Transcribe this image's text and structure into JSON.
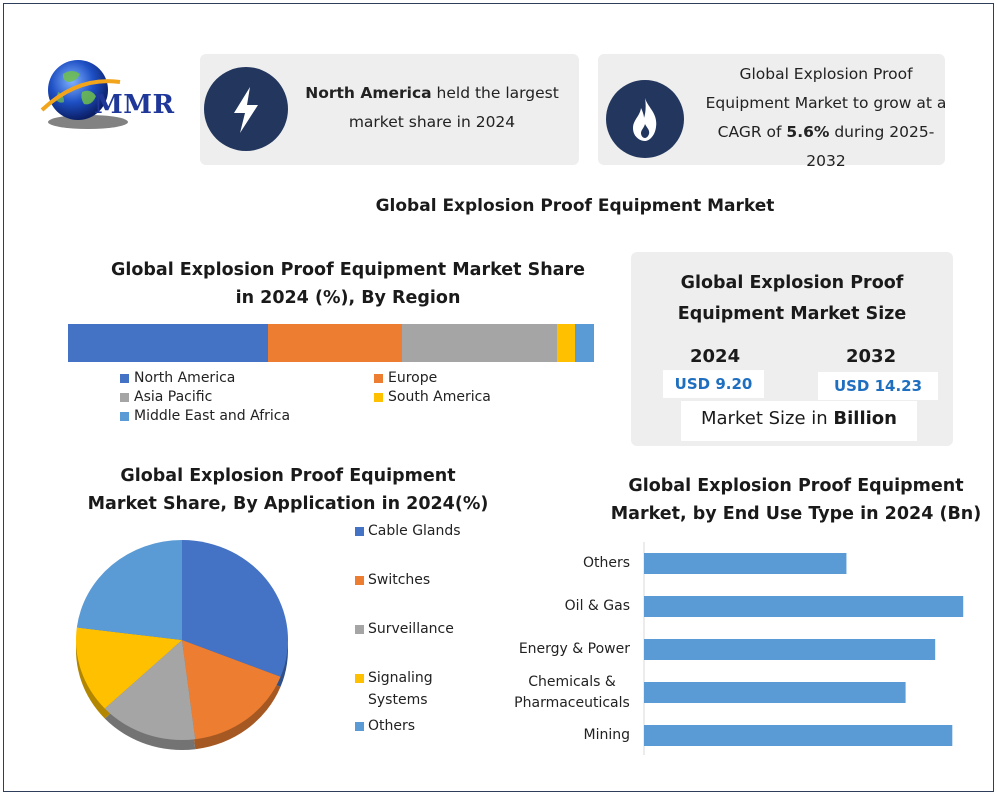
{
  "logo": {
    "text": "MMR"
  },
  "cards": [
    {
      "icon": "lightning-bolt-icon",
      "text_bold": "North America",
      "text_rest": " held the largest market share in 2024"
    },
    {
      "icon": "flame-icon",
      "text_before": "Global Explosion Proof Equipment Market to grow at a CAGR of ",
      "text_bold": "5.6%",
      "text_after": " during 2025-2032"
    }
  ],
  "main_title": "Global Explosion Proof Equipment Market",
  "market_size": {
    "title_line1": "Global Explosion Proof",
    "title_line2": "Equipment Market Size",
    "year1": "2024",
    "value1": "USD 9.20",
    "year2": "2032",
    "value2": "USD 14.23",
    "unit_prefix": "Market Size in ",
    "unit_bold": "Billion"
  },
  "colors": {
    "blue": "#4472c4",
    "orange": "#ed7d31",
    "gray": "#a5a5a5",
    "yellow": "#ffc000",
    "light_blue": "#5b9bd5",
    "navy": "#22365e",
    "bar": "#5b9bd5"
  },
  "chart_data": [
    {
      "type": "bar",
      "orientation": "stacked-horizontal",
      "title_line1": "Global Explosion Proof Equipment Market Share",
      "title_line2": "in 2024 (%), By Region",
      "series": [
        {
          "name": "North America",
          "value": 38,
          "color": "#4472c4"
        },
        {
          "name": "Europe",
          "value": 25.5,
          "color": "#ed7d31"
        },
        {
          "name": "Asia Pacific",
          "value": 29.5,
          "color": "#a5a5a5"
        },
        {
          "name": "South America",
          "value": 3.3,
          "color": "#ffc000"
        },
        {
          "name": "Middle East and Africa",
          "value": 3.7,
          "color": "#5b9bd5"
        }
      ]
    },
    {
      "type": "pie",
      "title_line1": "Global Explosion Proof Equipment",
      "title_line2": "Market Share, By Application in 2024(%)",
      "slices": [
        {
          "name": "Cable Glands",
          "value": 31,
          "color": "#4472c4"
        },
        {
          "name": "Switches",
          "value": 17,
          "color": "#ed7d31"
        },
        {
          "name": "Surveillance",
          "value": 15,
          "color": "#a5a5a5"
        },
        {
          "name": "Signaling Systems",
          "value": 14,
          "color": "#ffc000"
        },
        {
          "name": "Others",
          "value": 23,
          "color": "#5b9bd5"
        }
      ],
      "legend": [
        {
          "line1": "Cable Glands",
          "line2": "",
          "color": "#4472c4"
        },
        {
          "line1": "Switches",
          "line2": "",
          "color": "#ed7d31"
        },
        {
          "line1": "Surveillance",
          "line2": "",
          "color": "#a5a5a5"
        },
        {
          "line1": "Signaling",
          "line2": "Systems",
          "color": "#ffc000"
        },
        {
          "line1": "Others",
          "line2": "",
          "color": "#5b9bd5"
        }
      ]
    },
    {
      "type": "bar",
      "orientation": "horizontal",
      "title_line1": "Global Explosion Proof Equipment",
      "title_line2": "Market, by End Use Type in 2024 (Bn)",
      "categories": [
        {
          "line1": "Others",
          "line2": ""
        },
        {
          "line1": "Oil & Gas",
          "line2": ""
        },
        {
          "line1": "Energy & Power",
          "line2": ""
        },
        {
          "line1": "Chemicals &",
          "line2": "Pharmaceuticals"
        },
        {
          "line1": "Mining",
          "line2": ""
        }
      ],
      "values": [
        1.3,
        2.05,
        1.87,
        1.68,
        1.98
      ],
      "xlim": [
        0,
        2.1
      ],
      "grid": false
    }
  ]
}
